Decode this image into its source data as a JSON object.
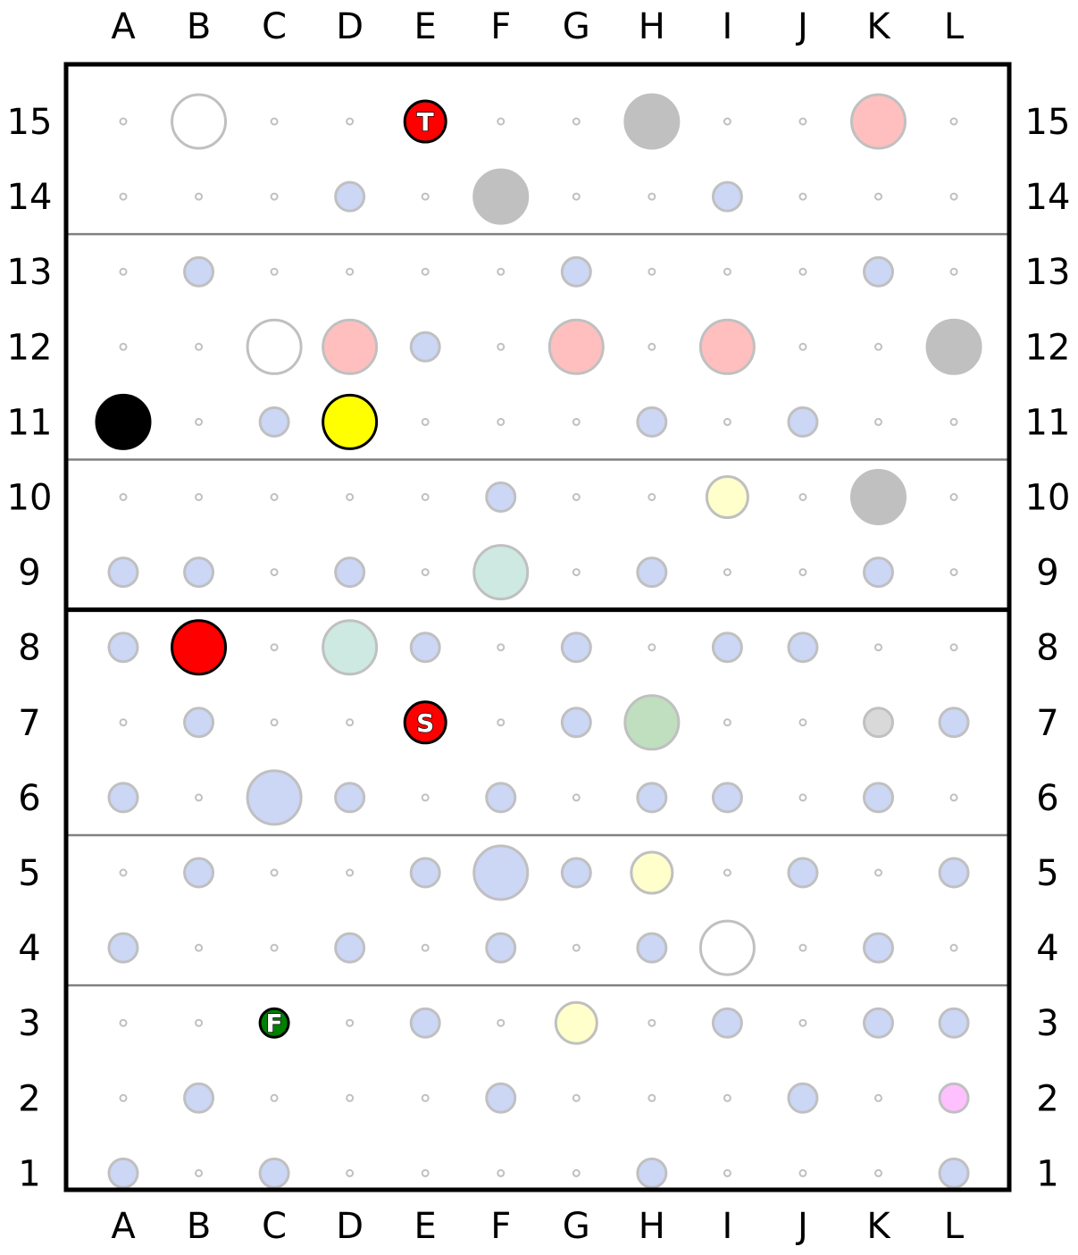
{
  "columns": [
    "A",
    "B",
    "C",
    "D",
    "E",
    "F",
    "G",
    "H",
    "I",
    "J",
    "K",
    "L"
  ],
  "rows": [
    "15",
    "14",
    "13",
    "12",
    "11",
    "10",
    "9",
    "8",
    "7",
    "6",
    "5",
    "4",
    "3",
    "2",
    "1"
  ],
  "colors": {
    "dot": "#c0c0c0",
    "blue": "#ccd6f5",
    "pink": "#ffbfbf",
    "gray": "#c0c0c0",
    "white": "#ffffff",
    "mint": "#cde9e1",
    "green_light": "#bfdfbf",
    "yellow_light": "#ffffcc",
    "light_gray": "#d9d9d9",
    "magenta_light": "#ffc0ff",
    "red": "#ff0000",
    "yellow": "#ffff00",
    "black": "#000000",
    "green": "#008000",
    "outline": "#c0c0c0",
    "divider": "#808080"
  },
  "thin_dividers_after_row": [
    "14",
    "11",
    "6",
    "4"
  ],
  "thick_divider_after_row": "9",
  "pieces": [
    {
      "cell": "B15",
      "size": "large",
      "color": "white"
    },
    {
      "cell": "E15",
      "size": "medium",
      "color": "red",
      "label": "T",
      "outlined": true
    },
    {
      "cell": "H15",
      "size": "large",
      "color": "gray"
    },
    {
      "cell": "K15",
      "size": "large",
      "color": "pink"
    },
    {
      "cell": "D14",
      "size": "small",
      "color": "blue"
    },
    {
      "cell": "F14",
      "size": "large",
      "color": "gray"
    },
    {
      "cell": "I14",
      "size": "small",
      "color": "blue"
    },
    {
      "cell": "B13",
      "size": "small",
      "color": "blue"
    },
    {
      "cell": "G13",
      "size": "small",
      "color": "blue"
    },
    {
      "cell": "K13",
      "size": "small",
      "color": "blue"
    },
    {
      "cell": "C12",
      "size": "large",
      "color": "white"
    },
    {
      "cell": "D12",
      "size": "large",
      "color": "pink"
    },
    {
      "cell": "E12",
      "size": "small",
      "color": "blue"
    },
    {
      "cell": "G12",
      "size": "large",
      "color": "pink"
    },
    {
      "cell": "I12",
      "size": "large",
      "color": "pink"
    },
    {
      "cell": "L12",
      "size": "large",
      "color": "gray"
    },
    {
      "cell": "A11",
      "size": "large",
      "color": "black",
      "outlined": true
    },
    {
      "cell": "C11",
      "size": "small",
      "color": "blue"
    },
    {
      "cell": "D11",
      "size": "large",
      "color": "yellow",
      "outlined": true
    },
    {
      "cell": "H11",
      "size": "small",
      "color": "blue"
    },
    {
      "cell": "J11",
      "size": "small",
      "color": "blue"
    },
    {
      "cell": "F10",
      "size": "small",
      "color": "blue"
    },
    {
      "cell": "I10",
      "size": "medium",
      "color": "yellow_light"
    },
    {
      "cell": "K10",
      "size": "large",
      "color": "gray"
    },
    {
      "cell": "A9",
      "size": "small",
      "color": "blue"
    },
    {
      "cell": "B9",
      "size": "small",
      "color": "blue"
    },
    {
      "cell": "D9",
      "size": "small",
      "color": "blue"
    },
    {
      "cell": "F9",
      "size": "large",
      "color": "mint"
    },
    {
      "cell": "H9",
      "size": "small",
      "color": "blue"
    },
    {
      "cell": "K9",
      "size": "small",
      "color": "blue"
    },
    {
      "cell": "A8",
      "size": "small",
      "color": "blue"
    },
    {
      "cell": "B8",
      "size": "large",
      "color": "red",
      "outlined": true
    },
    {
      "cell": "D8",
      "size": "large",
      "color": "mint"
    },
    {
      "cell": "E8",
      "size": "small",
      "color": "blue"
    },
    {
      "cell": "G8",
      "size": "small",
      "color": "blue"
    },
    {
      "cell": "I8",
      "size": "small",
      "color": "blue"
    },
    {
      "cell": "J8",
      "size": "small",
      "color": "blue"
    },
    {
      "cell": "B7",
      "size": "small",
      "color": "blue"
    },
    {
      "cell": "E7",
      "size": "medium",
      "color": "red",
      "label": "S",
      "outlined": true
    },
    {
      "cell": "G7",
      "size": "small",
      "color": "blue"
    },
    {
      "cell": "H7",
      "size": "large",
      "color": "green_light"
    },
    {
      "cell": "K7",
      "size": "small",
      "color": "light_gray"
    },
    {
      "cell": "L7",
      "size": "small",
      "color": "blue"
    },
    {
      "cell": "A6",
      "size": "small",
      "color": "blue"
    },
    {
      "cell": "C6",
      "size": "large",
      "color": "blue"
    },
    {
      "cell": "D6",
      "size": "small",
      "color": "blue"
    },
    {
      "cell": "F6",
      "size": "small",
      "color": "blue"
    },
    {
      "cell": "H6",
      "size": "small",
      "color": "blue"
    },
    {
      "cell": "I6",
      "size": "small",
      "color": "blue"
    },
    {
      "cell": "K6",
      "size": "small",
      "color": "blue"
    },
    {
      "cell": "B5",
      "size": "small",
      "color": "blue"
    },
    {
      "cell": "E5",
      "size": "small",
      "color": "blue"
    },
    {
      "cell": "F5",
      "size": "large",
      "color": "blue"
    },
    {
      "cell": "G5",
      "size": "small",
      "color": "blue"
    },
    {
      "cell": "H5",
      "size": "medium",
      "color": "yellow_light"
    },
    {
      "cell": "J5",
      "size": "small",
      "color": "blue"
    },
    {
      "cell": "L5",
      "size": "small",
      "color": "blue"
    },
    {
      "cell": "A4",
      "size": "small",
      "color": "blue"
    },
    {
      "cell": "D4",
      "size": "small",
      "color": "blue"
    },
    {
      "cell": "F4",
      "size": "small",
      "color": "blue"
    },
    {
      "cell": "H4",
      "size": "small",
      "color": "blue"
    },
    {
      "cell": "I4",
      "size": "large",
      "color": "white"
    },
    {
      "cell": "K4",
      "size": "small",
      "color": "blue"
    },
    {
      "cell": "C3",
      "size": "small",
      "color": "green",
      "label": "F",
      "outlined": true
    },
    {
      "cell": "E3",
      "size": "small",
      "color": "blue"
    },
    {
      "cell": "G3",
      "size": "medium",
      "color": "yellow_light"
    },
    {
      "cell": "I3",
      "size": "small",
      "color": "blue"
    },
    {
      "cell": "K3",
      "size": "small",
      "color": "blue"
    },
    {
      "cell": "L3",
      "size": "small",
      "color": "blue"
    },
    {
      "cell": "B2",
      "size": "small",
      "color": "blue"
    },
    {
      "cell": "F2",
      "size": "small",
      "color": "blue"
    },
    {
      "cell": "J2",
      "size": "small",
      "color": "blue"
    },
    {
      "cell": "L2",
      "size": "small",
      "color": "magenta_light"
    },
    {
      "cell": "A1",
      "size": "small",
      "color": "blue"
    },
    {
      "cell": "C1",
      "size": "small",
      "color": "blue"
    },
    {
      "cell": "H1",
      "size": "small",
      "color": "blue"
    },
    {
      "cell": "L1",
      "size": "small",
      "color": "blue"
    }
  ]
}
